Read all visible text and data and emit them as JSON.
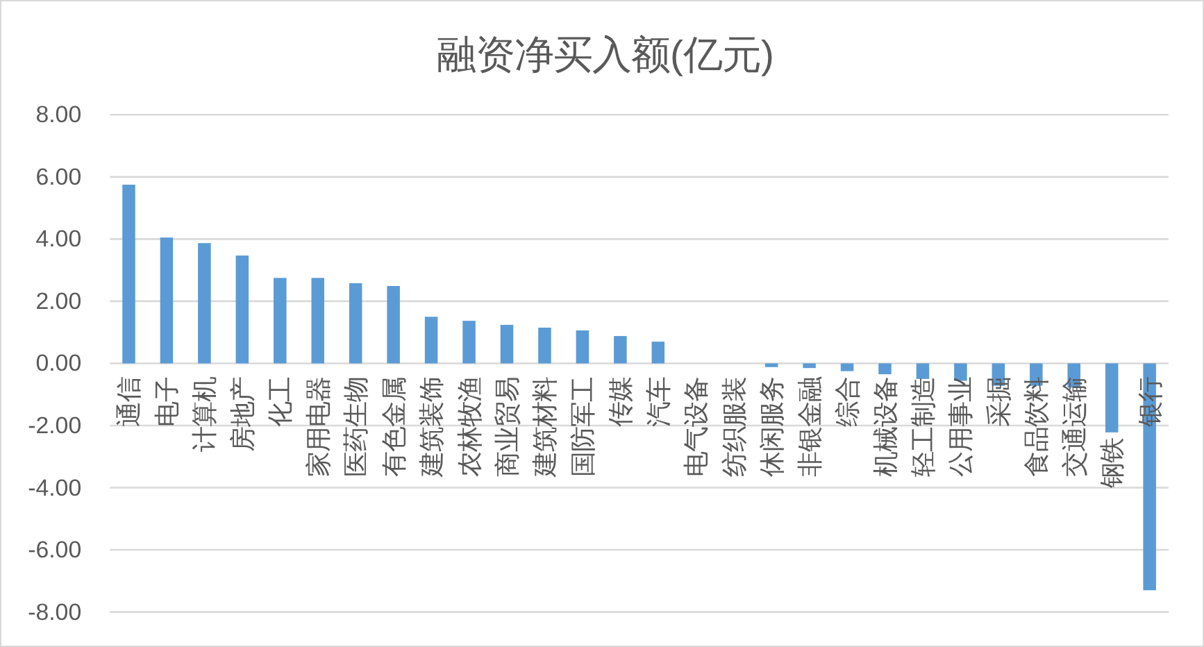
{
  "chart_data": {
    "type": "bar",
    "title": "融资净买入额(亿元)",
    "categories": [
      "通信",
      "电子",
      "计算机",
      "房地产",
      "化工",
      "家用电器",
      "医药生物",
      "有色金属",
      "建筑装饰",
      "农林牧渔",
      "商业贸易",
      "建筑材料",
      "国防军工",
      "传媒",
      "汽车",
      "电气设备",
      "纺织服装",
      "休闲服务",
      "非银金融",
      "综合",
      "机械设备",
      "轻工制造",
      "公用事业",
      "采掘",
      "食品饮料",
      "交通运输",
      "钢铁",
      "银行"
    ],
    "values": [
      5.75,
      4.05,
      3.87,
      3.47,
      2.75,
      2.75,
      2.58,
      2.49,
      1.5,
      1.37,
      1.24,
      1.15,
      1.06,
      0.88,
      0.7,
      0,
      0,
      -0.12,
      -0.15,
      -0.25,
      -0.35,
      -0.5,
      -0.56,
      -0.72,
      -0.72,
      -0.78,
      -2.22,
      -7.3
    ],
    "color": "#5b9bd5",
    "ylim": [
      -8,
      8
    ],
    "yticks": [
      {
        "value": -8,
        "label": "-8.00"
      },
      {
        "value": -6,
        "label": "-6.00"
      },
      {
        "value": -4,
        "label": "-4.00"
      },
      {
        "value": -2,
        "label": "-2.00"
      },
      {
        "value": 0,
        "label": "0.00"
      },
      {
        "value": 2,
        "label": "2.00"
      },
      {
        "value": 4,
        "label": "4.00"
      },
      {
        "value": 6,
        "label": "6.00"
      },
      {
        "value": 8,
        "label": "8.00"
      }
    ],
    "grid": "y"
  }
}
